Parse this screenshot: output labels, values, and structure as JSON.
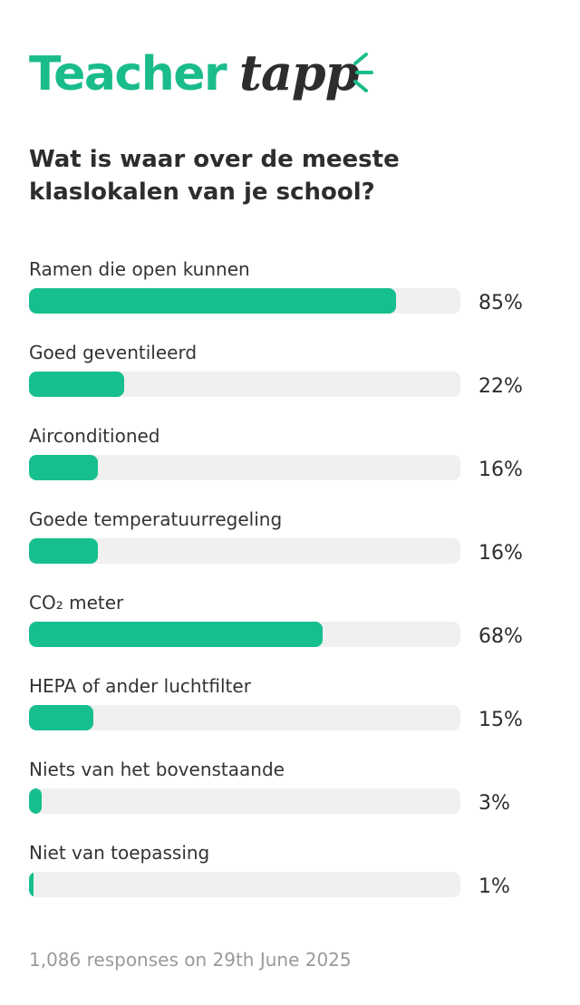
{
  "brand": {
    "part1": "Teacher",
    "part2": "tapp",
    "color_green": "#1abc8c",
    "color_dark": "#2d2d2d"
  },
  "chart_data": {
    "type": "bar",
    "title": "Wat is waar over de meeste klaslokalen van je school?",
    "categories": [
      "Ramen die open kunnen",
      "Goed geventileerd",
      "Airconditioned",
      "Goede temperatuurregeling",
      "CO₂ meter",
      "HEPA of ander luchtfilter",
      "Niets van het bovenstaande",
      "Niet van toepassing"
    ],
    "values": [
      85,
      22,
      16,
      16,
      68,
      15,
      3,
      1
    ],
    "value_labels": [
      "85%",
      "22%",
      "16%",
      "16%",
      "68%",
      "15%",
      "3%",
      "1%"
    ],
    "ylim": [
      0,
      100
    ],
    "bar_color": "#17bf8e",
    "track_color": "#f0f0f0",
    "grid": false,
    "orientation": "horizontal"
  },
  "footer": {
    "text": "1,086 responses on 29th June 2025"
  }
}
